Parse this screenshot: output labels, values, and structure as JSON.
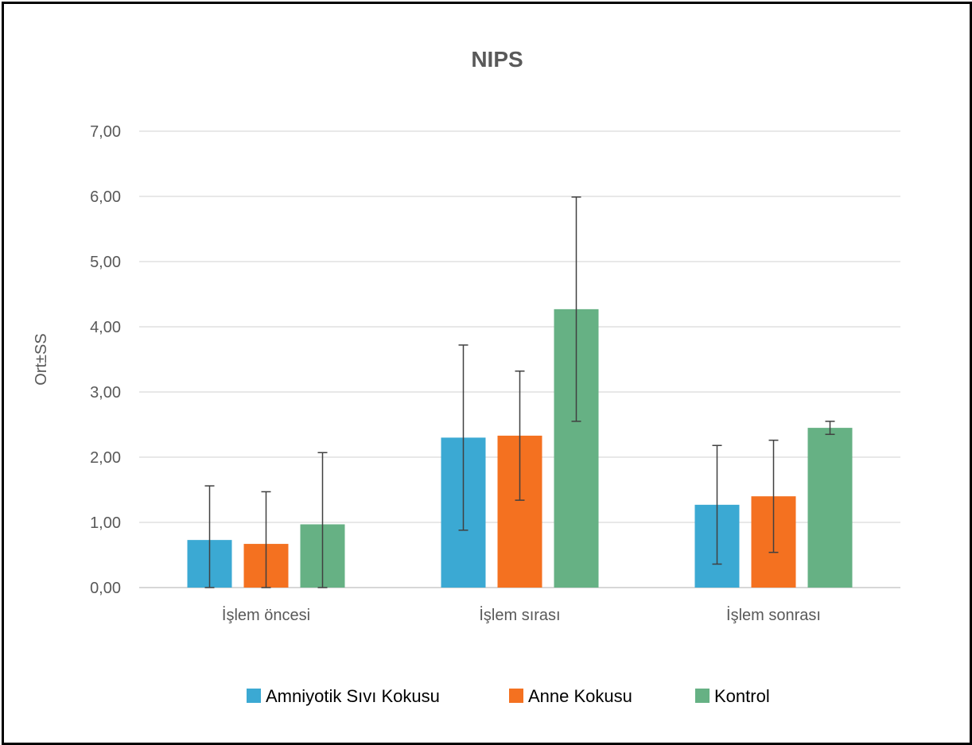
{
  "chart_data": {
    "type": "bar",
    "title": "NIPS",
    "ylabel": "Ort±SS",
    "xlabel": "",
    "ylim": [
      0,
      7
    ],
    "yticks": [
      "0,00",
      "1,00",
      "2,00",
      "3,00",
      "4,00",
      "5,00",
      "6,00",
      "7,00"
    ],
    "categories": [
      "İşlem öncesi",
      "İşlem sırası",
      "İşlem sonrası"
    ],
    "series": [
      {
        "name": "Amniyotik Sıvı Kokusu",
        "color": "#3BA9D3",
        "values": [
          0.73,
          2.3,
          1.27
        ],
        "errors": [
          0.83,
          1.42,
          0.91
        ]
      },
      {
        "name": "Anne Kokusu",
        "color": "#F47120",
        "values": [
          0.67,
          2.33,
          1.4
        ],
        "errors": [
          0.8,
          0.99,
          0.86
        ]
      },
      {
        "name": "Kontrol",
        "color": "#66B184",
        "values": [
          0.97,
          4.27,
          2.45
        ],
        "errors": [
          1.1,
          1.72,
          0.1
        ]
      }
    ],
    "grid": true,
    "legend": "bottom"
  }
}
